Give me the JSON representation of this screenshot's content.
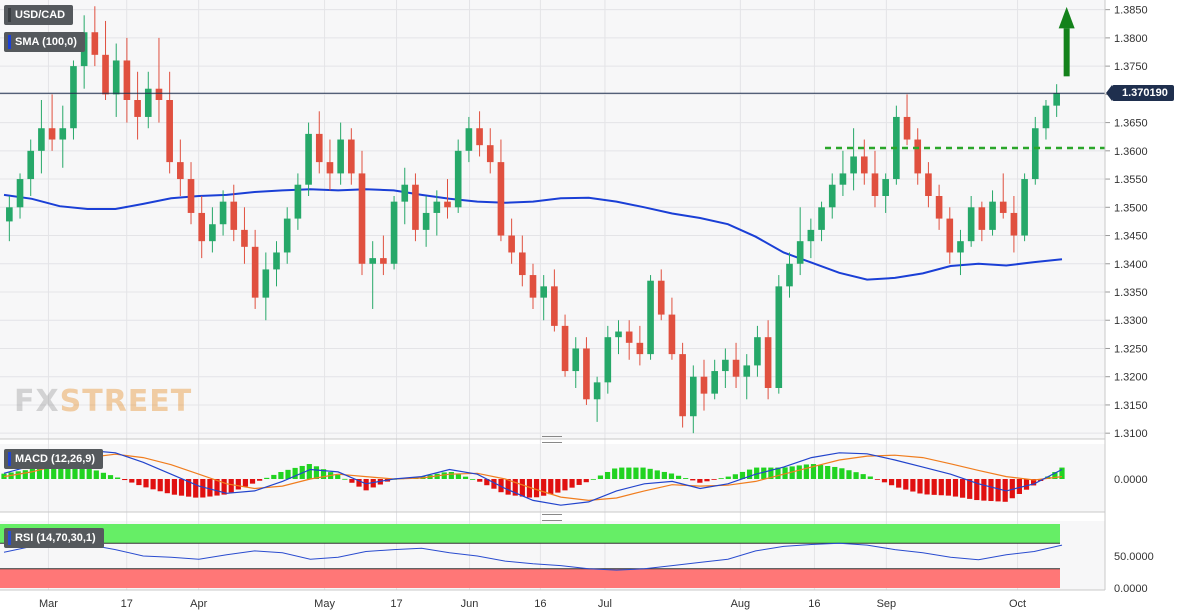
{
  "symbol_badge": "USD/CAD",
  "sma_badge": "SMA (100,0)",
  "macd_badge": "MACD (12,26,9)",
  "rsi_badge": "RSI (14,70,30,1)",
  "last_price_tag": "1.370190",
  "logo": {
    "part1": "FX",
    "part2": "STREET"
  },
  "colors": {
    "bull": "#26a869",
    "bear": "#e0503f",
    "sma": "#1a3fd6",
    "macd_line": "#2244cc",
    "signal_line": "#f07d1e",
    "hist_pos": "#21d321",
    "hist_neg": "#e01010",
    "resistance": "#2aa62a",
    "arrow": "#13821b",
    "rsi_over": "#66ee66",
    "rsi_under": "#ff7777",
    "rsi_line": "#2a4ccf"
  },
  "chart_data": [
    {
      "type": "candlestick",
      "title": "USD/CAD",
      "y_ticks": [
        "1.3850",
        "1.3800",
        "1.3750",
        "1.3700",
        "1.3650",
        "1.3600",
        "1.3550",
        "1.3500",
        "1.3450",
        "1.3400",
        "1.3350",
        "1.3300",
        "1.3250",
        "1.3200",
        "1.3150",
        "1.3100"
      ],
      "x_labels": [
        "Mar",
        "17",
        "Apr",
        "May",
        "17",
        "Jun",
        "16",
        "Jul",
        "Aug",
        "16",
        "Sep",
        "Oct"
      ],
      "ylim": [
        1.3095,
        1.386
      ],
      "last_price": 1.37019,
      "resistance_level": 1.3605,
      "sma_series": {
        "name": "SMA (100,0)",
        "values": [
          1.3522,
          1.3515,
          1.3502,
          1.3497,
          1.3497,
          1.3506,
          1.3516,
          1.352,
          1.3522,
          1.3527,
          1.353,
          1.3532,
          1.353,
          1.3532,
          1.353,
          1.3522,
          1.3515,
          1.351,
          1.3508,
          1.351,
          1.3516,
          1.3517,
          1.351,
          1.35,
          1.3489,
          1.3481,
          1.347,
          1.3448,
          1.342,
          1.3402,
          1.3384,
          1.3372,
          1.3375,
          1.3383,
          1.3396,
          1.34,
          1.3397,
          1.3403,
          1.3408
        ]
      },
      "candles": [
        [
          1.3475,
          1.352,
          1.344,
          1.35
        ],
        [
          1.35,
          1.356,
          1.348,
          1.355
        ],
        [
          1.355,
          1.362,
          1.352,
          1.36
        ],
        [
          1.36,
          1.369,
          1.356,
          1.364
        ],
        [
          1.364,
          1.37,
          1.36,
          1.362
        ],
        [
          1.362,
          1.368,
          1.357,
          1.364
        ],
        [
          1.364,
          1.376,
          1.362,
          1.375
        ],
        [
          1.375,
          1.384,
          1.371,
          1.381
        ],
        [
          1.381,
          1.3856,
          1.375,
          1.377
        ],
        [
          1.377,
          1.383,
          1.369,
          1.37
        ],
        [
          1.37,
          1.379,
          1.366,
          1.376
        ],
        [
          1.376,
          1.38,
          1.365,
          1.369
        ],
        [
          1.369,
          1.374,
          1.362,
          1.366
        ],
        [
          1.366,
          1.374,
          1.364,
          1.371
        ],
        [
          1.371,
          1.38,
          1.365,
          1.369
        ],
        [
          1.369,
          1.374,
          1.356,
          1.358
        ],
        [
          1.358,
          1.362,
          1.352,
          1.355
        ],
        [
          1.355,
          1.358,
          1.347,
          1.349
        ],
        [
          1.349,
          1.352,
          1.341,
          1.344
        ],
        [
          1.344,
          1.35,
          1.342,
          1.347
        ],
        [
          1.347,
          1.353,
          1.345,
          1.351
        ],
        [
          1.351,
          1.354,
          1.344,
          1.346
        ],
        [
          1.346,
          1.35,
          1.34,
          1.343
        ],
        [
          1.343,
          1.346,
          1.332,
          1.334
        ],
        [
          1.334,
          1.342,
          1.33,
          1.339
        ],
        [
          1.339,
          1.344,
          1.336,
          1.342
        ],
        [
          1.342,
          1.35,
          1.34,
          1.348
        ],
        [
          1.348,
          1.356,
          1.346,
          1.354
        ],
        [
          1.354,
          1.365,
          1.352,
          1.363
        ],
        [
          1.363,
          1.367,
          1.356,
          1.358
        ],
        [
          1.358,
          1.362,
          1.353,
          1.356
        ],
        [
          1.356,
          1.365,
          1.354,
          1.362
        ],
        [
          1.362,
          1.364,
          1.354,
          1.356
        ],
        [
          1.356,
          1.36,
          1.338,
          1.34
        ],
        [
          1.34,
          1.344,
          1.332,
          1.341
        ],
        [
          1.341,
          1.345,
          1.338,
          1.34
        ],
        [
          1.34,
          1.352,
          1.339,
          1.351
        ],
        [
          1.351,
          1.357,
          1.347,
          1.354
        ],
        [
          1.354,
          1.356,
          1.344,
          1.346
        ],
        [
          1.346,
          1.352,
          1.343,
          1.349
        ],
        [
          1.349,
          1.353,
          1.345,
          1.351
        ],
        [
          1.351,
          1.355,
          1.348,
          1.35
        ],
        [
          1.35,
          1.362,
          1.349,
          1.36
        ],
        [
          1.36,
          1.366,
          1.358,
          1.364
        ],
        [
          1.364,
          1.367,
          1.359,
          1.361
        ],
        [
          1.361,
          1.364,
          1.356,
          1.358
        ],
        [
          1.358,
          1.362,
          1.344,
          1.345
        ],
        [
          1.345,
          1.348,
          1.34,
          1.342
        ],
        [
          1.342,
          1.345,
          1.336,
          1.338
        ],
        [
          1.338,
          1.34,
          1.332,
          1.334
        ],
        [
          1.334,
          1.338,
          1.33,
          1.336
        ],
        [
          1.336,
          1.339,
          1.328,
          1.329
        ],
        [
          1.329,
          1.331,
          1.32,
          1.321
        ],
        [
          1.321,
          1.327,
          1.318,
          1.325
        ],
        [
          1.325,
          1.327,
          1.315,
          1.316
        ],
        [
          1.316,
          1.32,
          1.312,
          1.319
        ],
        [
          1.319,
          1.329,
          1.317,
          1.327
        ],
        [
          1.327,
          1.33,
          1.324,
          1.328
        ],
        [
          1.328,
          1.33,
          1.323,
          1.326
        ],
        [
          1.326,
          1.329,
          1.322,
          1.324
        ],
        [
          1.324,
          1.338,
          1.323,
          1.337
        ],
        [
          1.337,
          1.339,
          1.33,
          1.331
        ],
        [
          1.331,
          1.334,
          1.323,
          1.324
        ],
        [
          1.324,
          1.326,
          1.311,
          1.313
        ],
        [
          1.313,
          1.322,
          1.31,
          1.32
        ],
        [
          1.32,
          1.323,
          1.314,
          1.317
        ],
        [
          1.317,
          1.323,
          1.316,
          1.321
        ],
        [
          1.321,
          1.325,
          1.318,
          1.323
        ],
        [
          1.323,
          1.326,
          1.318,
          1.32
        ],
        [
          1.32,
          1.324,
          1.316,
          1.322
        ],
        [
          1.322,
          1.329,
          1.32,
          1.327
        ],
        [
          1.327,
          1.33,
          1.316,
          1.318
        ],
        [
          1.318,
          1.338,
          1.317,
          1.336
        ],
        [
          1.336,
          1.342,
          1.334,
          1.34
        ],
        [
          1.34,
          1.35,
          1.338,
          1.344
        ],
        [
          1.344,
          1.348,
          1.341,
          1.346
        ],
        [
          1.346,
          1.351,
          1.344,
          1.35
        ],
        [
          1.35,
          1.356,
          1.348,
          1.354
        ],
        [
          1.354,
          1.36,
          1.352,
          1.356
        ],
        [
          1.356,
          1.364,
          1.353,
          1.359
        ],
        [
          1.359,
          1.362,
          1.354,
          1.356
        ],
        [
          1.356,
          1.36,
          1.35,
          1.352
        ],
        [
          1.352,
          1.356,
          1.349,
          1.355
        ],
        [
          1.355,
          1.368,
          1.354,
          1.366
        ],
        [
          1.366,
          1.37,
          1.361,
          1.362
        ],
        [
          1.362,
          1.364,
          1.354,
          1.356
        ],
        [
          1.356,
          1.358,
          1.35,
          1.352
        ],
        [
          1.352,
          1.354,
          1.346,
          1.348
        ],
        [
          1.348,
          1.35,
          1.34,
          1.342
        ],
        [
          1.342,
          1.346,
          1.338,
          1.344
        ],
        [
          1.344,
          1.352,
          1.343,
          1.35
        ],
        [
          1.35,
          1.351,
          1.344,
          1.346
        ],
        [
          1.346,
          1.353,
          1.345,
          1.351
        ],
        [
          1.351,
          1.356,
          1.348,
          1.349
        ],
        [
          1.349,
          1.352,
          1.342,
          1.345
        ],
        [
          1.345,
          1.356,
          1.344,
          1.355
        ],
        [
          1.355,
          1.366,
          1.354,
          1.364
        ],
        [
          1.364,
          1.369,
          1.362,
          1.368
        ],
        [
          1.368,
          1.3718,
          1.366,
          1.3702
        ]
      ]
    },
    {
      "type": "line",
      "title": "MACD (12,26,9)",
      "y_ticks": [
        "0.0000"
      ],
      "series": [
        {
          "name": "MACD",
          "values": [
            0.0012,
            0.0028,
            0.005,
            0.006,
            0.0055,
            0.0035,
            0.001,
            -0.0015,
            -0.003,
            -0.0025,
            -0.0005,
            0.002,
            0.0015,
            -0.001,
            0.0,
            0.0005,
            0.002,
            0.001,
            -0.002,
            -0.0045,
            -0.0055,
            -0.0048,
            -0.0025,
            -0.001,
            -0.0005,
            -0.002,
            -0.001,
            0.001,
            0.0025,
            0.0045,
            0.0055,
            0.0053,
            0.004,
            0.0025,
            0.001,
            -0.001,
            -0.0025,
            -0.001,
            0.002
          ]
        },
        {
          "name": "Signal",
          "values": [
            0.0005,
            0.0015,
            0.003,
            0.0045,
            0.0052,
            0.0045,
            0.003,
            0.001,
            -0.001,
            -0.002,
            -0.0015,
            0.0,
            0.001,
            0.0005,
            0.0,
            0.0002,
            0.001,
            0.0012,
            0.0,
            -0.002,
            -0.0038,
            -0.0045,
            -0.004,
            -0.0025,
            -0.0012,
            -0.0015,
            -0.0013,
            -0.0005,
            0.001,
            0.0025,
            0.004,
            0.0048,
            0.005,
            0.0045,
            0.0032,
            0.0018,
            0.0005,
            -0.0002,
            0.0005
          ]
        }
      ]
    },
    {
      "type": "line",
      "title": "RSI (14,70,30,1)",
      "y_ticks": [
        "50.0000",
        "0.0000"
      ],
      "series": [
        {
          "name": "RSI",
          "values": [
            56,
            65,
            72,
            68,
            60,
            50,
            48,
            45,
            52,
            58,
            55,
            45,
            48,
            57,
            60,
            62,
            55,
            50,
            42,
            38,
            35,
            30,
            28,
            30,
            35,
            40,
            45,
            58,
            65,
            68,
            70,
            67,
            60,
            55,
            48,
            44,
            52,
            57,
            67
          ]
        }
      ]
    }
  ]
}
